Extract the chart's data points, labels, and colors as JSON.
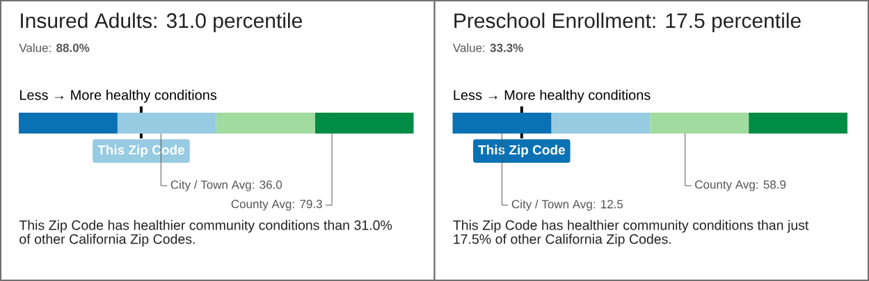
{
  "chart_data": [
    {
      "type": "bar",
      "orientation": "horizontal",
      "stacked": true,
      "title": "Insured Adults: 31.0 percentile",
      "subtitle": "Value: **88.0%**",
      "xlabel": "Less → More healthy conditions",
      "categories": [
        null
      ],
      "series": [
        {
          "color": "#0a72b4",
          "values": [
            25
          ]
        },
        {
          "color": "#96cbe2",
          "values": [
            25
          ]
        },
        {
          "color": "#a2dba0",
          "values": [
            25
          ]
        },
        {
          "color": "#008c44",
          "values": [
            25
          ]
        }
      ],
      "xlim": [
        0,
        100
      ],
      "tick_labels": false,
      "ref_lines": [
        {
          "axis": "x",
          "value": 31.0,
          "label": "This Zip Code",
          "color": "#000000"
        },
        {
          "axis": "x",
          "value": 36.0,
          "label": "City / Town Avg: 36.0",
          "color": "#555555"
        },
        {
          "axis": "x",
          "value": 79.3,
          "label": "County Avg: 79.3",
          "color": "#555555"
        }
      ],
      "annotations": [
        "This Zip Code has healthier community conditions than 31.0% of other California Zip Codes."
      ]
    },
    {
      "type": "bar",
      "orientation": "horizontal",
      "stacked": true,
      "title": "Preschool Enrollment: 17.5 percentile",
      "subtitle": "Value: **33.3%**",
      "xlabel": "Less → More healthy conditions",
      "categories": [
        null
      ],
      "series": [
        {
          "color": "#0a72b4",
          "values": [
            25
          ]
        },
        {
          "color": "#96cbe2",
          "values": [
            25
          ]
        },
        {
          "color": "#a2dba0",
          "values": [
            25
          ]
        },
        {
          "color": "#008c44",
          "values": [
            25
          ]
        }
      ],
      "xlim": [
        0,
        100
      ],
      "tick_labels": false,
      "ref_lines": [
        {
          "axis": "x",
          "value": 17.5,
          "label": "This Zip Code",
          "color": "#000000"
        },
        {
          "axis": "x",
          "value": 58.9,
          "label": "County Avg: 58.9",
          "color": "#555555"
        },
        {
          "axis": "x",
          "value": 12.5,
          "label": "City / Town Avg: 12.5",
          "color": "#555555"
        }
      ],
      "annotations": [
        "This Zip Code has healthier community conditions than just 17.5% of other California Zip Codes."
      ]
    }
  ]
}
